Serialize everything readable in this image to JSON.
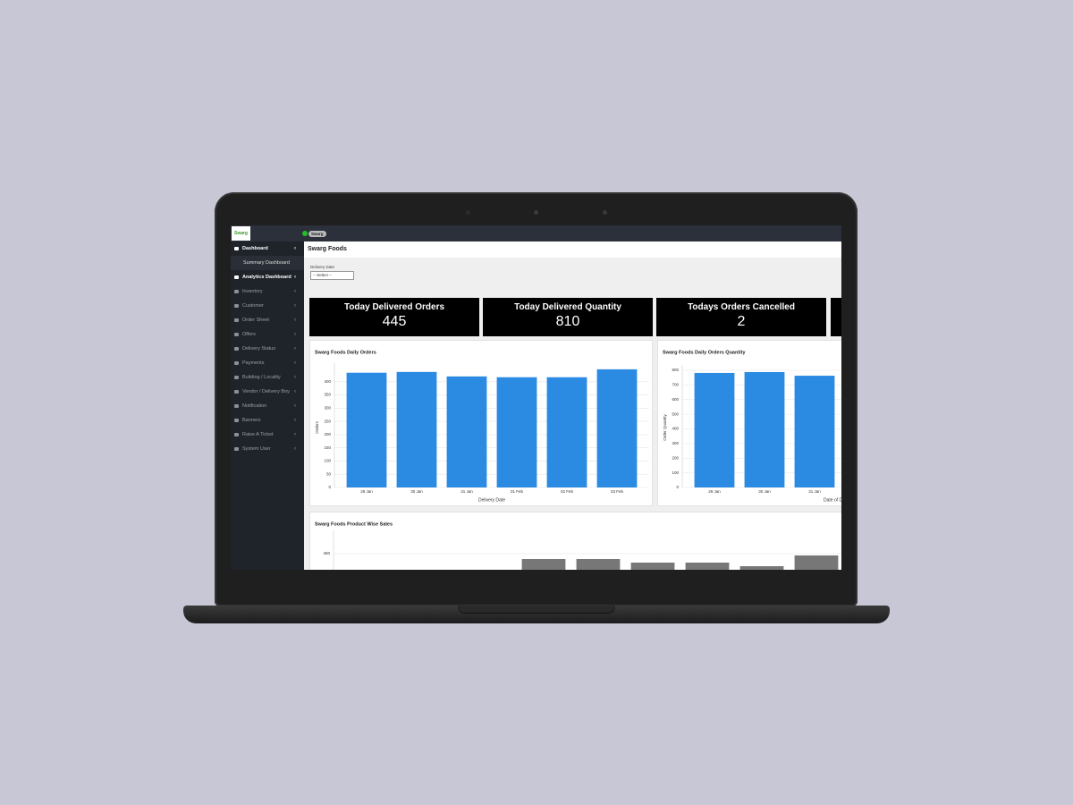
{
  "topbar": {
    "logo": "Swarg",
    "user": "Swarg"
  },
  "sidebar": {
    "items": [
      "Dashboard",
      "Summary Dashboard",
      "Analytics Dashboard",
      "Inventory",
      "Customer",
      "Order Sheet",
      "Offers",
      "Delivery Status",
      "Payments",
      "Building / Locality",
      "Vendor / Delivery Boy",
      "Notification",
      "Banners",
      "Raise A Ticket",
      "System User"
    ]
  },
  "header": {
    "title": "Swarg Foods"
  },
  "filter": {
    "label": "Delivery Date",
    "placeholder": "-- Select --"
  },
  "kpis": [
    {
      "label": "Today Delivered Orders",
      "value": 445
    },
    {
      "label": "Today Delivered Quantity",
      "value": 810
    },
    {
      "label": "Todays Orders Cancelled",
      "value": 2
    }
  ],
  "chart_data": [
    {
      "type": "bar",
      "title": "Swarg Foods Daily Orders",
      "xlabel": "Delivery Date",
      "ylabel": "Orders",
      "categories": [
        "29 Jan",
        "30 Jan",
        "31 Jan",
        "01 Feb",
        "02 Feb",
        "03 Feb"
      ],
      "values": [
        434,
        437,
        420,
        417,
        417,
        447
      ],
      "color": "#2b8ae2",
      "ylim": [
        0,
        450
      ],
      "yticks": [
        0,
        50,
        100,
        150,
        200,
        250,
        300,
        350,
        400
      ],
      "grid": true
    },
    {
      "type": "bar",
      "title": "Swarg Foods Daily Orders Quantity",
      "xlabel": "Date of Delivery",
      "ylabel": "Order Quantity",
      "categories": [
        "29 Jan",
        "30 Jan",
        "31 Jan"
      ],
      "values": [
        782,
        788,
        763
      ],
      "color": "#2b8ae2",
      "ylim": [
        0,
        800
      ],
      "yticks": [
        0,
        100,
        200,
        300,
        400,
        500,
        600,
        700,
        800
      ],
      "grid": true
    },
    {
      "type": "bar",
      "title": "Swarg Foods Product Wise Sales",
      "categories": [
        null,
        null,
        null,
        null,
        null,
        null
      ],
      "values": [
        435,
        435,
        425,
        425,
        415,
        445
      ],
      "color": "#777777",
      "ylim": [
        0,
        500
      ],
      "yticks": [
        450
      ],
      "grid": true
    }
  ]
}
